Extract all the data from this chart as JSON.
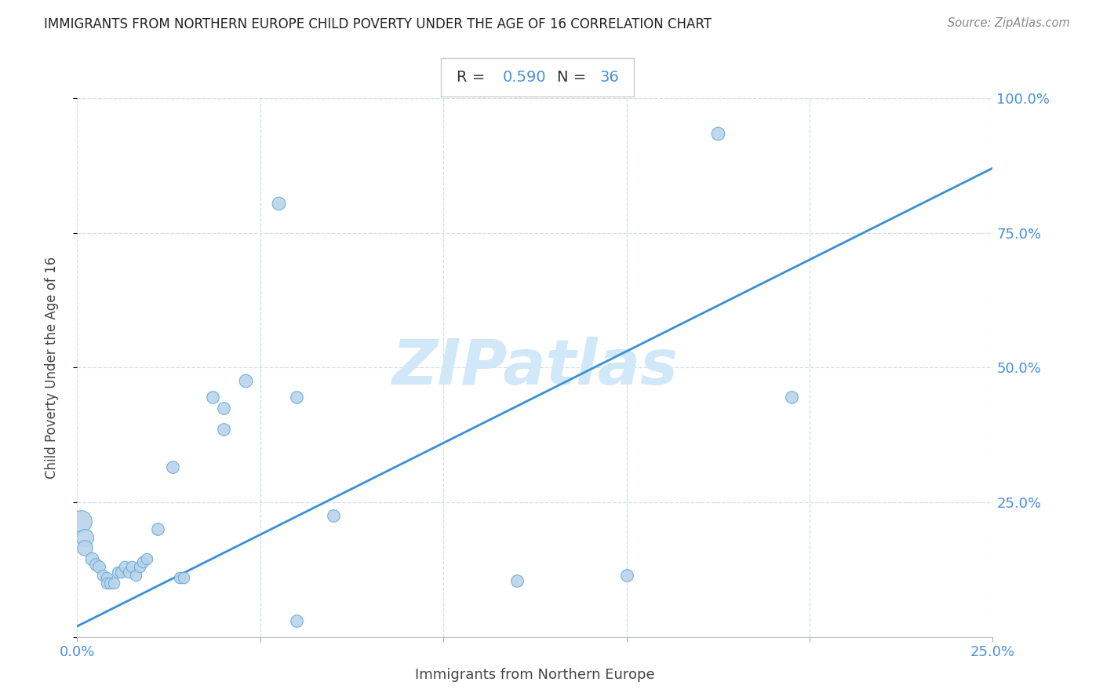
{
  "title": "IMMIGRANTS FROM NORTHERN EUROPE CHILD POVERTY UNDER THE AGE OF 16 CORRELATION CHART",
  "source": "Source: ZipAtlas.com",
  "xlabel": "Immigrants from Northern Europe",
  "ylabel": "Child Poverty Under the Age of 16",
  "R": 0.59,
  "N": 36,
  "xlim": [
    0,
    0.25
  ],
  "ylim": [
    0,
    1.0
  ],
  "xticks": [
    0.0,
    0.05,
    0.1,
    0.15,
    0.2,
    0.25
  ],
  "xtick_labels": [
    "0.0%",
    "",
    "",
    "",
    "",
    "25.0%"
  ],
  "yticks": [
    0.0,
    0.25,
    0.5,
    0.75,
    1.0
  ],
  "ytick_labels": [
    "",
    "25.0%",
    "50.0%",
    "75.0%",
    "100.0%"
  ],
  "scatter_color": "#b8d4ec",
  "scatter_edgecolor": "#6aaad4",
  "line_color": "#3a8fd4",
  "watermark_color": "#d0e8f8",
  "points": [
    [
      0.001,
      0.215,
      22
    ],
    [
      0.002,
      0.185,
      14
    ],
    [
      0.002,
      0.165,
      11
    ],
    [
      0.004,
      0.145,
      8
    ],
    [
      0.005,
      0.135,
      7
    ],
    [
      0.006,
      0.13,
      7
    ],
    [
      0.007,
      0.115,
      6
    ],
    [
      0.008,
      0.11,
      6
    ],
    [
      0.008,
      0.1,
      6
    ],
    [
      0.009,
      0.1,
      6
    ],
    [
      0.01,
      0.1,
      6
    ],
    [
      0.011,
      0.12,
      6
    ],
    [
      0.012,
      0.12,
      6
    ],
    [
      0.013,
      0.13,
      6
    ],
    [
      0.014,
      0.12,
      6
    ],
    [
      0.015,
      0.13,
      6
    ],
    [
      0.016,
      0.115,
      6
    ],
    [
      0.017,
      0.13,
      6
    ],
    [
      0.018,
      0.14,
      6
    ],
    [
      0.019,
      0.145,
      6
    ],
    [
      0.022,
      0.2,
      7
    ],
    [
      0.026,
      0.315,
      7
    ],
    [
      0.028,
      0.11,
      6
    ],
    [
      0.029,
      0.11,
      6
    ],
    [
      0.037,
      0.445,
      7
    ],
    [
      0.04,
      0.425,
      7
    ],
    [
      0.04,
      0.385,
      7
    ],
    [
      0.046,
      0.475,
      8
    ],
    [
      0.055,
      0.805,
      8
    ],
    [
      0.06,
      0.445,
      7
    ],
    [
      0.06,
      0.03,
      7
    ],
    [
      0.07,
      0.225,
      7
    ],
    [
      0.12,
      0.105,
      7
    ],
    [
      0.15,
      0.115,
      7
    ],
    [
      0.175,
      0.935,
      8
    ],
    [
      0.195,
      0.445,
      7
    ]
  ],
  "regression_y_intercept": 0.02,
  "regression_slope": 3.4
}
